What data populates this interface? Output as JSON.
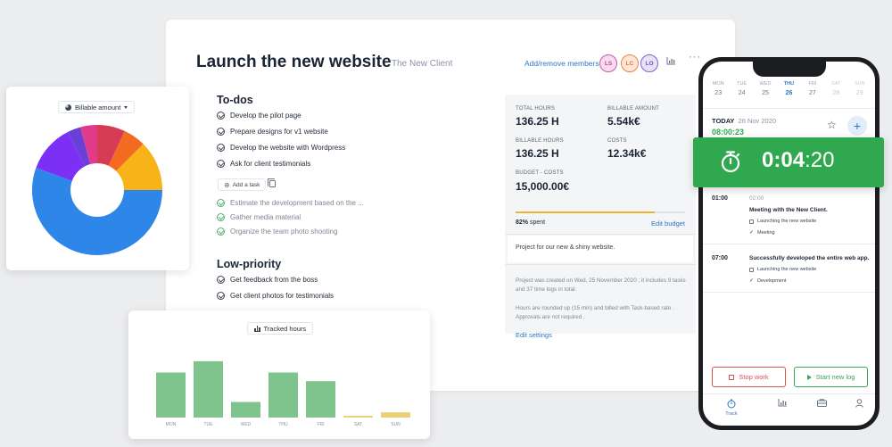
{
  "project": {
    "title": "Launch the new website",
    "client": "The New Client",
    "members_link": "Add/remove members",
    "members": [
      "LS",
      "LC",
      "LO"
    ]
  },
  "todos": {
    "title": "To-dos",
    "items": [
      "Develop the pilot page",
      "Prepare designs for v1 website",
      "Develop the website with Wordpress",
      "Ask for client testimonials"
    ],
    "add_task": "Add a task",
    "done_items": [
      "Estimate the development based on the ...",
      "Gather media material",
      "Organize the team photo shooting"
    ]
  },
  "low_priority": {
    "title": "Low-priority",
    "items": [
      "Get feedback from the boss",
      "Get client photos for testimonials"
    ]
  },
  "stats": {
    "total_hours_label": "TOTAL HOURS",
    "total_hours": "136.25 H",
    "billable_amount_label": "BILLABLE AMOUNT",
    "billable_amount": "5.54k€",
    "billable_hours_label": "BILLABLE HOURS",
    "billable_hours": "136.25 H",
    "costs_label": "COSTS",
    "costs": "12.34k€",
    "budget_label": "BUDGET - COSTS",
    "budget": "15,000.00€",
    "spent_percent": 82,
    "spent_pct_text": "82%",
    "spent_suffix": "spent",
    "edit_budget": "Edit budget",
    "description": "Project for our new & shiny website.",
    "created_info": "Project was created on Wed, 25 November 2020 ; it includes 9 tasks and 37 time logs in total.",
    "rounding_info": "Hours are rounded up (15 min) and billed with Task-based rate . Approvals are not required .",
    "edit_settings": "Edit settings"
  },
  "donut": {
    "dropdown": "Billable amount",
    "colors": [
      "#2e86e8",
      "#7c2ff5",
      "#6a3fd6",
      "#e23a8a",
      "#d63b53",
      "#f26b21",
      "#f8b318"
    ]
  },
  "tracked_hours": {
    "title": "Tracked hours",
    "bar_color": "#7ec48c",
    "small_bar_color": "#eccf73"
  },
  "chart_data": {
    "type": "bar",
    "categories": [
      "MON",
      "TUE",
      "WED",
      "THU",
      "FRI",
      "SAT",
      "SUN"
    ],
    "values": [
      52,
      65,
      18,
      52,
      42,
      2,
      6
    ],
    "title": "Tracked hours",
    "xlabel": "",
    "ylabel": "",
    "ylim": [
      0,
      70
    ],
    "grid": false
  },
  "phone": {
    "week": [
      {
        "day": "MON",
        "date": "23",
        "state": "normal"
      },
      {
        "day": "TUE",
        "date": "24",
        "state": "normal"
      },
      {
        "day": "WED",
        "date": "25",
        "state": "normal"
      },
      {
        "day": "THU",
        "date": "26",
        "state": "active"
      },
      {
        "day": "FRI",
        "date": "27",
        "state": "normal"
      },
      {
        "day": "SAT",
        "date": "28",
        "state": "muted"
      },
      {
        "day": "SUN",
        "date": "29",
        "state": "muted"
      }
    ],
    "today_label": "TODAY",
    "today_date": "26 Nov 2020",
    "today_total": "08:00:23",
    "logs": [
      {
        "time": "01:00",
        "end": "02:00",
        "title": "Meeting with the New Client.",
        "project": "Launching the new website",
        "tag": "Meeting"
      },
      {
        "time": "07:00",
        "title": "Successfully developed the entire web app.",
        "project": "Launching the new website",
        "tag": "Development"
      }
    ],
    "stop_work": "Stop work",
    "start_log": "Start new log",
    "tab_track": "Track"
  },
  "timer": {
    "hours": "0",
    "minutes": "04",
    "seconds": "20",
    "sep1": ":",
    "sep2": ":"
  }
}
